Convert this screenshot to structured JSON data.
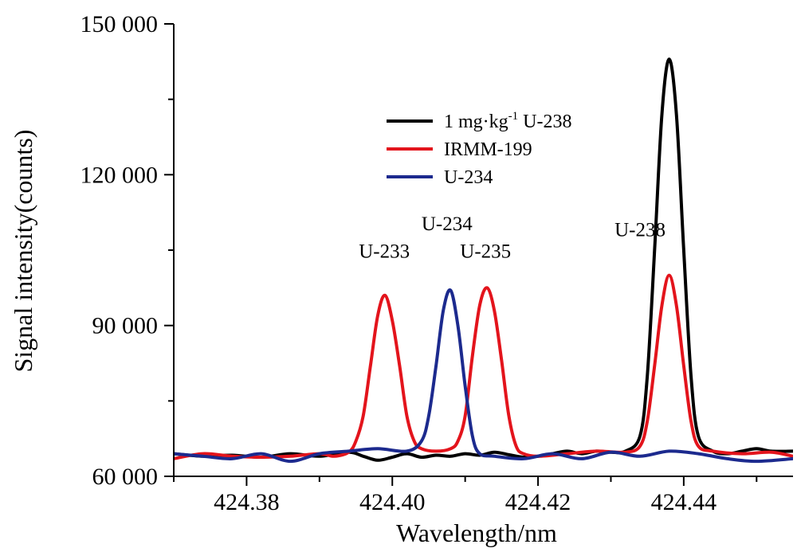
{
  "chart_data": {
    "type": "line",
    "title": "",
    "xlabel": "Wavelength/nm",
    "ylabel": "Signal intensity(counts)",
    "xlim": [
      424.37,
      424.455
    ],
    "ylim": [
      60000,
      150000
    ],
    "x_ticks": [
      {
        "value": 424.38,
        "label": "424.38"
      },
      {
        "value": 424.4,
        "label": "424.40"
      },
      {
        "value": 424.42,
        "label": "424.42"
      },
      {
        "value": 424.44,
        "label": "424.44"
      }
    ],
    "y_ticks": [
      {
        "value": 60000,
        "label": "60 000"
      },
      {
        "value": 90000,
        "label": "90 000"
      },
      {
        "value": 120000,
        "label": "120 000"
      },
      {
        "value": 150000,
        "label": "150 000"
      }
    ],
    "grid": false,
    "legend_position": "top-center",
    "legend": {
      "entries": [
        {
          "series": 0,
          "label_main": "1 mg·kg",
          "label_sup": "-1",
          "label_tail": " U-238"
        },
        {
          "series": 1,
          "label_main": "IRMM-199",
          "label_sup": "",
          "label_tail": ""
        },
        {
          "series": 2,
          "label_main": "U-234",
          "label_sup": "",
          "label_tail": ""
        }
      ]
    },
    "series": [
      {
        "name": "1 mg·kg-1 U-238",
        "color": "#000000",
        "x": [
          424.37,
          424.374,
          424.378,
          424.382,
          424.386,
          424.39,
          424.394,
          424.396,
          424.398,
          424.4,
          424.402,
          424.404,
          424.406,
          424.408,
          424.41,
          424.412,
          424.414,
          424.416,
          424.418,
          424.42,
          424.422,
          424.424,
          424.426,
          424.428,
          424.43,
          424.432,
          424.434,
          424.435,
          424.436,
          424.437,
          424.438,
          424.439,
          424.44,
          424.441,
          424.442,
          424.444,
          424.446,
          424.448,
          424.45,
          424.452,
          424.455
        ],
        "y": [
          64500,
          64000,
          64200,
          63800,
          64500,
          64000,
          64800,
          64000,
          63200,
          63800,
          64500,
          63800,
          64200,
          64000,
          64500,
          64200,
          64800,
          64300,
          63800,
          64000,
          64500,
          65000,
          64500,
          65000,
          64800,
          65000,
          68000,
          80000,
          105000,
          132000,
          143000,
          132000,
          105000,
          80000,
          68000,
          65000,
          64500,
          65000,
          65500,
          65000,
          65000
        ]
      },
      {
        "name": "IRMM-199",
        "color": "#e3141c",
        "x": [
          424.37,
          424.374,
          424.378,
          424.382,
          424.386,
          424.39,
          424.392,
          424.394,
          424.395,
          424.396,
          424.397,
          424.398,
          424.399,
          424.4,
          424.401,
          424.402,
          424.403,
          424.404,
          424.406,
          424.408,
          424.409,
          424.41,
          424.411,
          424.412,
          424.413,
          424.414,
          424.415,
          424.416,
          424.417,
          424.418,
          424.42,
          424.424,
          424.428,
          424.432,
          424.434,
          424.435,
          424.436,
          424.437,
          424.438,
          424.439,
          424.44,
          424.441,
          424.442,
          424.444,
          424.448,
          424.452,
          424.455
        ],
        "y": [
          63500,
          64500,
          64000,
          63800,
          64000,
          64500,
          64000,
          64800,
          67000,
          72000,
          82000,
          92000,
          96000,
          91000,
          82000,
          72000,
          67000,
          65500,
          65000,
          65500,
          67000,
          72000,
          84000,
          94000,
          97500,
          93000,
          83000,
          72000,
          66000,
          64500,
          64000,
          64500,
          65000,
          64800,
          66000,
          71000,
          82000,
          94000,
          100000,
          94000,
          82000,
          71000,
          66000,
          65000,
          64500,
          64800,
          64000
        ]
      },
      {
        "name": "U-234",
        "color": "#1c2a8e",
        "x": [
          424.37,
          424.374,
          424.378,
          424.382,
          424.386,
          424.39,
          424.394,
          424.398,
          424.402,
          424.404,
          424.405,
          424.406,
          424.407,
          424.408,
          424.409,
          424.41,
          424.411,
          424.412,
          424.414,
          424.418,
          424.422,
          424.426,
          424.43,
          424.434,
          424.438,
          424.442,
          424.446,
          424.45,
          424.455
        ],
        "y": [
          64500,
          64000,
          63500,
          64500,
          63000,
          64500,
          65000,
          65500,
          65000,
          67000,
          72000,
          82000,
          93000,
          97000,
          90000,
          78000,
          68000,
          64500,
          64000,
          63500,
          64500,
          63500,
          64800,
          64000,
          65000,
          64500,
          63500,
          63000,
          63500
        ]
      }
    ],
    "annotations": [
      {
        "text": "U-233",
        "x": 424.3989,
        "y": 103500
      },
      {
        "text": "U-234",
        "x": 424.4075,
        "y": 109000
      },
      {
        "text": "U-235",
        "x": 424.4128,
        "y": 103500
      },
      {
        "text": "U-238",
        "x": 424.434,
        "y": 107800
      }
    ]
  }
}
